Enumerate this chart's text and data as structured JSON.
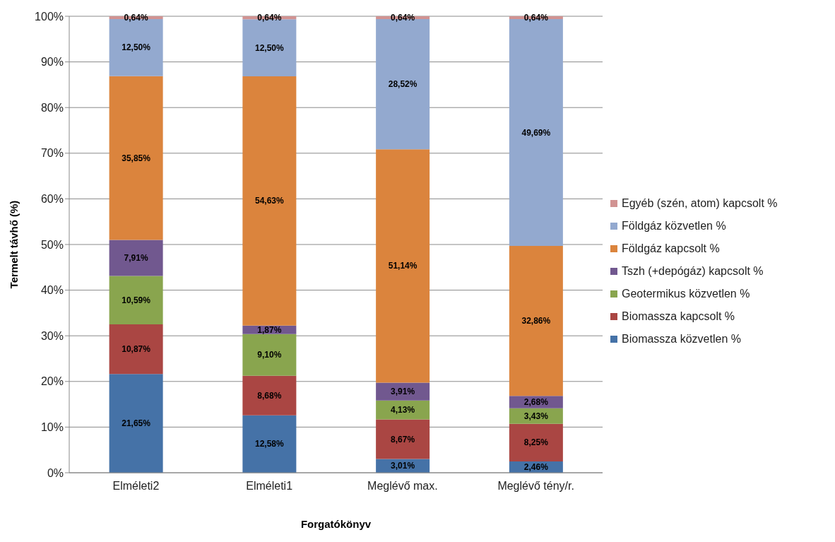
{
  "chart_data": {
    "type": "bar",
    "stacked": true,
    "xlabel": "Forgatókönyv",
    "ylabel": "Termelt távhő (%)",
    "categories": [
      "Elméleti2",
      "Elméleti1",
      "Meglévő max.",
      "Meglévő tény/r."
    ],
    "ylim": [
      0,
      100
    ],
    "yticks": [
      {
        "value": 0,
        "label": "0%"
      },
      {
        "value": 10,
        "label": "10%"
      },
      {
        "value": 20,
        "label": "20%"
      },
      {
        "value": 30,
        "label": "30%"
      },
      {
        "value": 40,
        "label": "40%"
      },
      {
        "value": 50,
        "label": "50%"
      },
      {
        "value": 60,
        "label": "60%"
      },
      {
        "value": 70,
        "label": "70%"
      },
      {
        "value": 80,
        "label": "80%"
      },
      {
        "value": 90,
        "label": "90%"
      },
      {
        "value": 100,
        "label": "100%"
      }
    ],
    "grid": "y",
    "legend": "right",
    "series": [
      {
        "name": "Biomassza közvetlen %",
        "color": "#4572a7",
        "values": [
          21.65,
          12.58,
          3.01,
          2.46
        ],
        "value_labels": [
          "21,65%",
          "12,58%",
          "3,01%",
          "2,46%"
        ]
      },
      {
        "name": "Biomassza kapcsolt %",
        "color": "#aa4643",
        "values": [
          10.87,
          8.68,
          8.67,
          8.25
        ],
        "value_labels": [
          "10,87%",
          "8,68%",
          "8,67%",
          "8,25%"
        ]
      },
      {
        "name": "Geotermikus közvetlen %",
        "color": "#89a54e",
        "values": [
          10.59,
          9.1,
          4.13,
          3.43
        ],
        "value_labels": [
          "10,59%",
          "9,10%",
          "4,13%",
          "3,43%"
        ]
      },
      {
        "name": "Tszh (+depógáz) kapcsolt %",
        "color": "#71588f",
        "values": [
          7.91,
          1.87,
          3.91,
          2.68
        ],
        "value_labels": [
          "7,91%",
          "1,87%",
          "3,91%",
          "2,68%"
        ]
      },
      {
        "name": "Földgáz kapcsolt %",
        "color": "#db843d",
        "values": [
          35.85,
          54.63,
          51.14,
          32.86
        ],
        "value_labels": [
          "35,85%",
          "54,63%",
          "51,14%",
          "32,86%"
        ]
      },
      {
        "name": "Földgáz közvetlen %",
        "color": "#93a9cf",
        "values": [
          12.5,
          12.5,
          28.52,
          49.69
        ],
        "value_labels": [
          "12,50%",
          "12,50%",
          "28,52%",
          "49,69%"
        ]
      },
      {
        "name": "Egyéb (szén, atom) kapcsolt %",
        "color": "#d19392",
        "values": [
          0.64,
          0.64,
          0.64,
          0.64
        ],
        "value_labels": [
          "0,64%",
          "0,64%",
          "0,64%",
          "0,64%"
        ]
      }
    ]
  }
}
